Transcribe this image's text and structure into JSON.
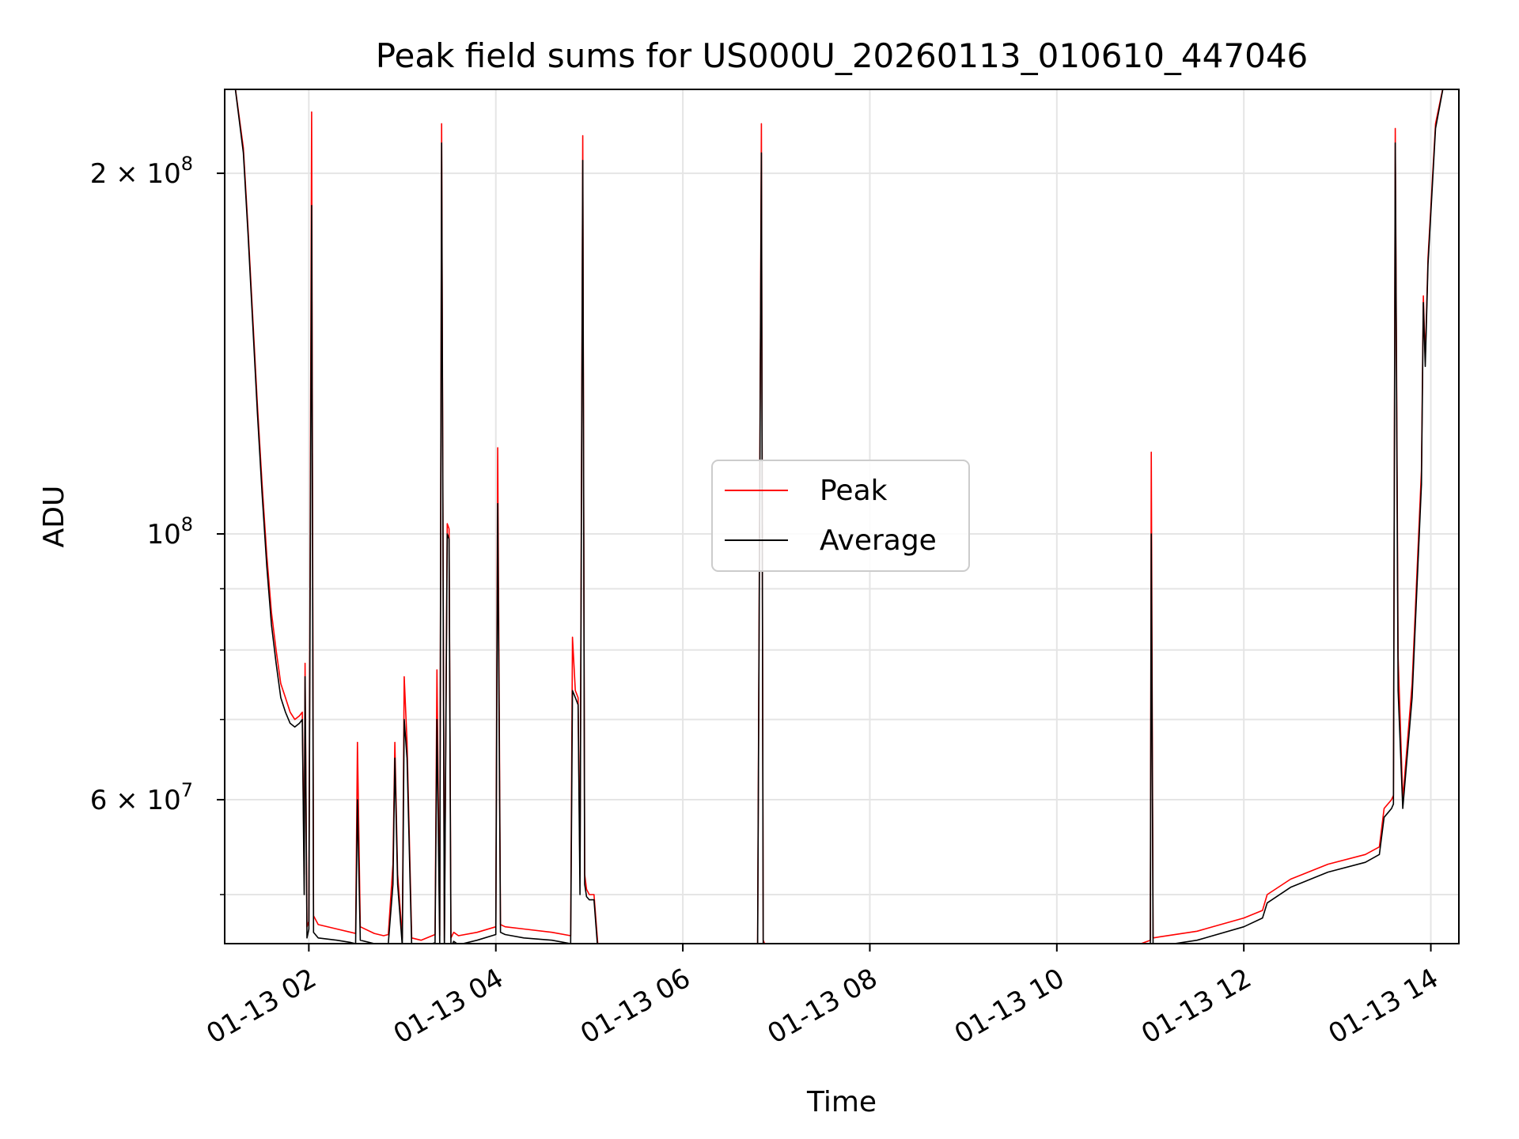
{
  "chart_data": {
    "type": "line",
    "title": "Peak field sums for US000U_20260113_010610_447046",
    "xlabel": "Time",
    "ylabel": "ADU",
    "yscale": "log",
    "x_unit": "hours after 2026-01-13 00:00",
    "xlim": [
      1.1,
      14.3
    ],
    "ylim": [
      45500000,
      235000000
    ],
    "grid": true,
    "legend_position": "center",
    "x_ticks": [
      {
        "value": 2,
        "label": "01-13 02"
      },
      {
        "value": 4,
        "label": "01-13 04"
      },
      {
        "value": 6,
        "label": "01-13 06"
      },
      {
        "value": 8,
        "label": "01-13 08"
      },
      {
        "value": 10,
        "label": "01-13 10"
      },
      {
        "value": 12,
        "label": "01-13 12"
      },
      {
        "value": 14,
        "label": "01-13 14"
      }
    ],
    "y_major_ticks": [
      {
        "value": 60000000,
        "base": "6 × 10",
        "exp": "7"
      },
      {
        "value": 100000000,
        "base": "10",
        "exp": "8"
      },
      {
        "value": 200000000,
        "base": "2 × 10",
        "exp": "8"
      }
    ],
    "y_minor_ticks": [
      50000000,
      70000000,
      80000000,
      90000000
    ],
    "series": [
      {
        "name": "Peak",
        "color": "#ff0000",
        "x": [
          1.1,
          1.2,
          1.3,
          1.35,
          1.45,
          1.5,
          1.55,
          1.6,
          1.65,
          1.7,
          1.75,
          1.8,
          1.85,
          1.9,
          1.93,
          1.95,
          1.96,
          1.98,
          2.0,
          2.03,
          2.05,
          2.1,
          2.3,
          2.45,
          2.5,
          2.52,
          2.55,
          2.7,
          2.8,
          2.85,
          2.9,
          2.92,
          2.95,
          3.0,
          3.02,
          3.05,
          3.1,
          3.2,
          3.35,
          3.37,
          3.4,
          3.42,
          3.45,
          3.48,
          3.5,
          3.52,
          3.55,
          3.6,
          3.8,
          4.0,
          4.02,
          4.05,
          4.1,
          4.3,
          4.6,
          4.8,
          4.82,
          4.85,
          4.88,
          4.9,
          4.93,
          4.95,
          4.97,
          5.0,
          5.05,
          5.1,
          5.15,
          5.5,
          6.0,
          6.5,
          6.8,
          6.84,
          6.86,
          6.9,
          7.0,
          7.5,
          8.0,
          8.5,
          9.0,
          9.5,
          10.0,
          10.5,
          10.8,
          11.0,
          11.01,
          11.03,
          11.1,
          11.5,
          12.0,
          12.2,
          12.25,
          12.5,
          12.9,
          13.3,
          13.45,
          13.5,
          13.58,
          13.6,
          13.62,
          13.65,
          13.7,
          13.8,
          13.9,
          13.92,
          13.94,
          13.97,
          14.05,
          14.15,
          14.3
        ],
        "y": [
          240000000,
          240000000,
          210000000,
          180000000,
          128000000,
          110000000,
          96000000,
          86000000,
          80000000,
          75000000,
          73000000,
          71000000,
          70000000,
          70500000,
          71000000,
          52000000,
          78000000,
          47000000,
          47500000,
          225000000,
          48000000,
          47200000,
          46800000,
          46500000,
          46400000,
          67000000,
          47000000,
          46400000,
          46200000,
          46300000,
          53000000,
          67000000,
          52000000,
          46000000,
          76000000,
          67000000,
          46000000,
          45800000,
          46300000,
          77000000,
          46200000,
          220000000,
          45800000,
          102000000,
          101000000,
          46000000,
          46500000,
          46200000,
          46500000,
          47000000,
          118000000,
          47200000,
          47000000,
          46800000,
          46500000,
          46200000,
          82000000,
          74000000,
          73000000,
          52000000,
          215000000,
          52000000,
          50500000,
          50000000,
          50000000,
          44500000,
          44800000,
          45200000,
          44800000,
          45200000,
          45500000,
          220000000,
          45800000,
          45000000,
          44800000,
          44600000,
          44500000,
          44500000,
          44500000,
          44500000,
          44600000,
          44700000,
          45200000,
          45800000,
          117000000,
          46000000,
          46100000,
          46600000,
          47800000,
          48500000,
          50000000,
          51500000,
          53000000,
          54000000,
          54800000,
          59000000,
          60000000,
          60500000,
          218000000,
          79000000,
          60000000,
          75000000,
          113000000,
          158000000,
          140000000,
          170000000,
          220000000,
          240000000,
          240000000
        ]
      },
      {
        "name": "Average",
        "color": "#000000",
        "x": [
          1.1,
          1.2,
          1.3,
          1.35,
          1.45,
          1.5,
          1.55,
          1.6,
          1.65,
          1.7,
          1.75,
          1.8,
          1.85,
          1.9,
          1.93,
          1.95,
          1.96,
          1.98,
          2.0,
          2.03,
          2.05,
          2.1,
          2.3,
          2.45,
          2.5,
          2.52,
          2.55,
          2.7,
          2.8,
          2.85,
          2.9,
          2.92,
          2.95,
          3.0,
          3.02,
          3.05,
          3.1,
          3.2,
          3.35,
          3.37,
          3.4,
          3.42,
          3.45,
          3.48,
          3.5,
          3.52,
          3.55,
          3.6,
          3.8,
          4.0,
          4.02,
          4.05,
          4.1,
          4.3,
          4.6,
          4.8,
          4.82,
          4.85,
          4.88,
          4.9,
          4.93,
          4.95,
          4.97,
          5.0,
          5.05,
          5.1,
          5.15,
          5.5,
          6.0,
          6.5,
          6.8,
          6.84,
          6.86,
          6.9,
          7.0,
          7.5,
          8.0,
          8.5,
          9.0,
          9.5,
          10.0,
          10.5,
          10.8,
          11.0,
          11.01,
          11.03,
          11.1,
          11.5,
          12.0,
          12.2,
          12.25,
          12.5,
          12.9,
          13.3,
          13.45,
          13.5,
          13.58,
          13.6,
          13.62,
          13.65,
          13.7,
          13.8,
          13.9,
          13.92,
          13.94,
          13.97,
          14.05,
          14.15,
          14.3
        ],
        "y": [
          240000000,
          240000000,
          208000000,
          178000000,
          126000000,
          108000000,
          94000000,
          84000000,
          78000000,
          73000000,
          71000000,
          69500000,
          69000000,
          69500000,
          70000000,
          50000000,
          76000000,
          46000000,
          46800000,
          188000000,
          46500000,
          46000000,
          45800000,
          45600000,
          45500000,
          60000000,
          45800000,
          45500000,
          45400000,
          45500000,
          51000000,
          65000000,
          51000000,
          45300000,
          70000000,
          65000000,
          45200000,
          45100000,
          45600000,
          70000000,
          45400000,
          212000000,
          45000000,
          100000000,
          99000000,
          45200000,
          45700000,
          45400000,
          45800000,
          46300000,
          106000000,
          46500000,
          46300000,
          46000000,
          45800000,
          45500000,
          74000000,
          73000000,
          72000000,
          50000000,
          205000000,
          51000000,
          49800000,
          49500000,
          49500000,
          44000000,
          44200000,
          44500000,
          44200000,
          44500000,
          44800000,
          208000000,
          45000000,
          44300000,
          44100000,
          43900000,
          43800000,
          43800000,
          43800000,
          43800000,
          43900000,
          44000000,
          44500000,
          45000000,
          100000000,
          45200000,
          45300000,
          45800000,
          47000000,
          47800000,
          49200000,
          50700000,
          52200000,
          53200000,
          54000000,
          58000000,
          59000000,
          59500000,
          212000000,
          74000000,
          59000000,
          73000000,
          110000000,
          156000000,
          138000000,
          168000000,
          218000000,
          240000000,
          240000000
        ]
      }
    ]
  }
}
